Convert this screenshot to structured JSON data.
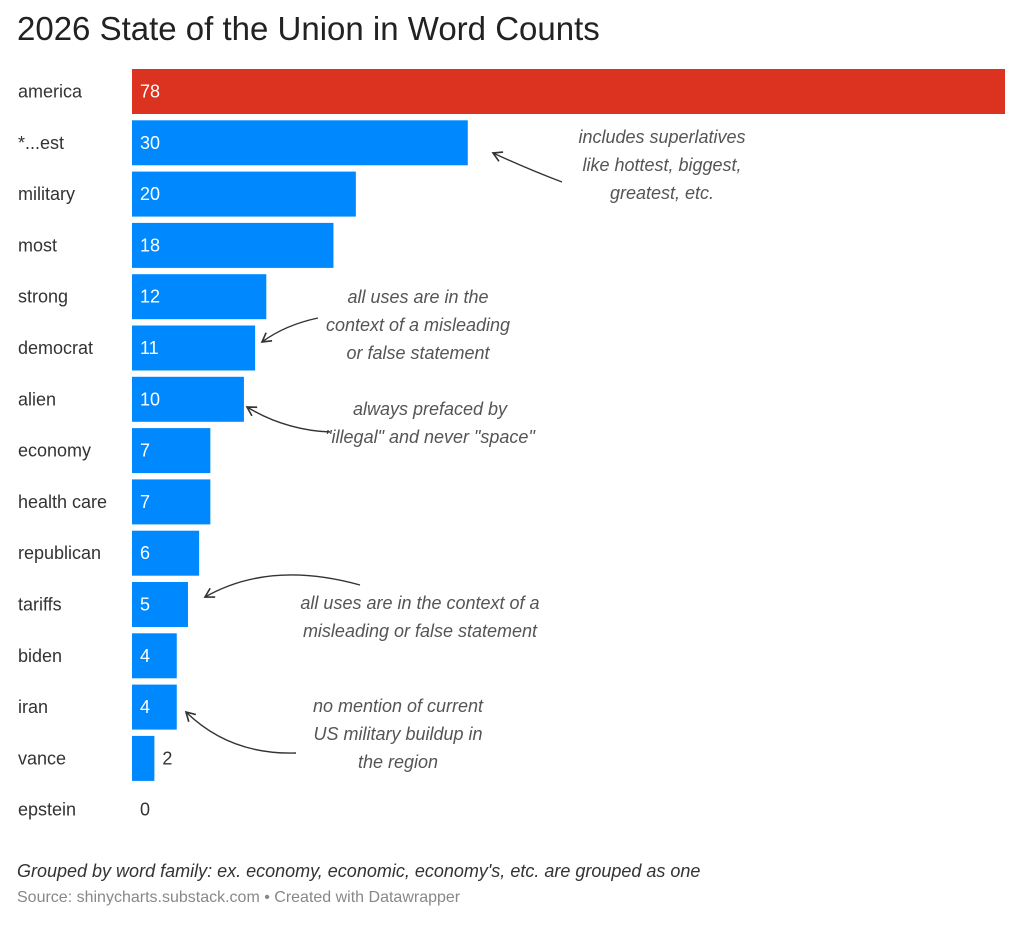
{
  "chart_data": {
    "type": "bar",
    "orientation": "horizontal",
    "title": "2026 State of the Union in Word Counts",
    "categories": [
      "america",
      "*...est",
      "military",
      "most",
      "strong",
      "democrat",
      "alien",
      "economy",
      "health care",
      "republican",
      "tariffs",
      "biden",
      "iran",
      "vance",
      "epstein"
    ],
    "values": [
      78,
      30,
      20,
      18,
      12,
      11,
      10,
      7,
      7,
      6,
      5,
      4,
      4,
      2,
      0
    ],
    "xlim": [
      0,
      78
    ],
    "grid": false,
    "colors": {
      "highlight": "#dc3220",
      "default": "#0088ff"
    },
    "highlight_category": "america",
    "annotations": [
      {
        "target": "*...est",
        "lines": [
          "includes superlatives",
          "like hottest, biggest,",
          "greatest, etc."
        ]
      },
      {
        "target": "democrat",
        "lines": [
          "all uses are in the",
          "context of a misleading",
          "or false statement"
        ]
      },
      {
        "target": "alien",
        "lines": [
          "always prefaced by",
          "\"illegal\" and never \"space\""
        ]
      },
      {
        "target": "tariffs",
        "lines": [
          "all uses are in the context of a",
          "misleading or false statement"
        ]
      },
      {
        "target": "iran",
        "lines": [
          "no mention of current",
          "US military buildup in",
          "the region"
        ]
      }
    ],
    "note": "Grouped by word family: ex. economy, economic, economy's, etc. are grouped as one",
    "source": "Source: shinycharts.substack.com • Created with Datawrapper"
  }
}
